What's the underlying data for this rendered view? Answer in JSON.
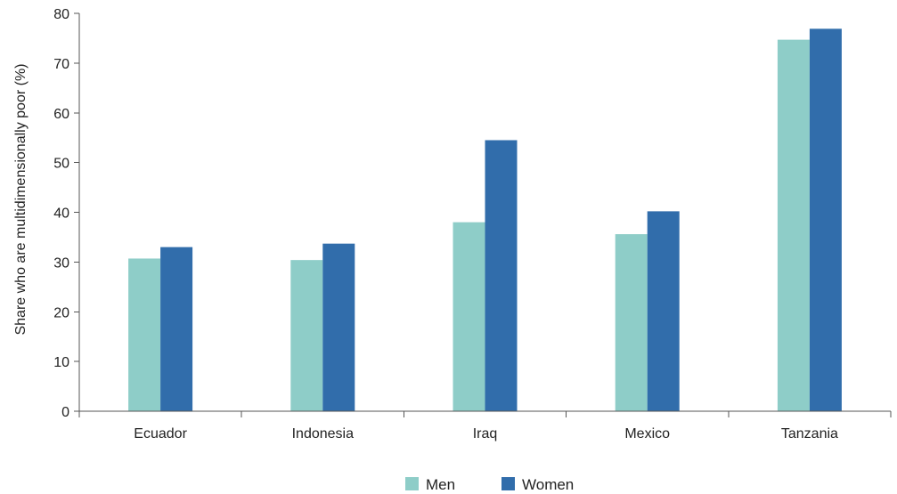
{
  "chart_data": {
    "type": "bar",
    "title": "",
    "xlabel": "",
    "ylabel": "Share who are multidimensionally poor (%)",
    "categories": [
      "Ecuador",
      "Indonesia",
      "Iraq",
      "Mexico",
      "Tanzania"
    ],
    "series": [
      {
        "name": "Men",
        "color": "#8ecdc8",
        "values": [
          30.7,
          30.4,
          38.0,
          35.6,
          74.7
        ]
      },
      {
        "name": "Women",
        "color": "#316dab",
        "values": [
          33.0,
          33.7,
          54.5,
          40.2,
          76.9
        ]
      }
    ],
    "ylim": [
      0,
      80
    ],
    "yticks": [
      0,
      10,
      20,
      30,
      40,
      50,
      60,
      70,
      80
    ],
    "grid": false,
    "legend_position": "bottom-center"
  }
}
